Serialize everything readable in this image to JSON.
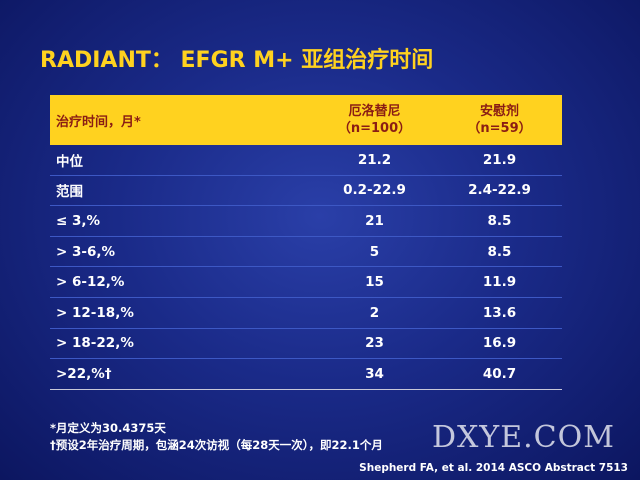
{
  "title": "RADIANT： EFGR M+ 亚组治疗时间",
  "table": {
    "header": [
      "治疗时间，月*",
      [
        "厄洛替尼",
        "（n=100）"
      ],
      [
        "安慰剂",
        "（n=59）"
      ]
    ],
    "rows": [
      [
        "中位",
        "21.2",
        "21.9"
      ],
      [
        "范围",
        "0.2-22.9",
        "2.4-22.9"
      ],
      [
        "≤ 3,%",
        "21",
        "8.5"
      ],
      [
        "> 3-6,%",
        "5",
        "8.5"
      ],
      [
        "> 6-12,%",
        "15",
        "11.9"
      ],
      [
        "> 12-18,%",
        "2",
        "13.6"
      ],
      [
        "> 18-22,%",
        "23",
        "16.9"
      ],
      [
        ">22,%†",
        "34",
        "40.7"
      ]
    ]
  },
  "footnotes": [
    "*月定义为30.4375天",
    "†预设2年治疗周期，包涵24次访视（每28天一次），即22.1个月"
  ],
  "citation": "Shepherd FA, et al. 2014 ASCO Abstract 7513",
  "watermark": "DXYE.COM"
}
